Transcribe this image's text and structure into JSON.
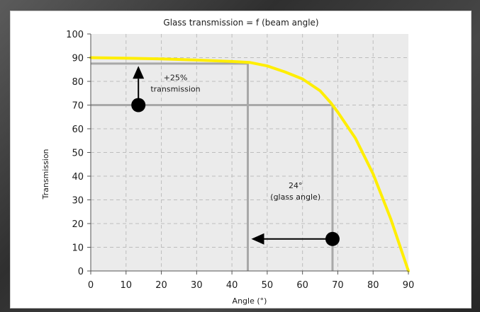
{
  "chart_data": {
    "type": "line",
    "title": "Glass transmission = f (beam angle)",
    "xlabel": "Angle (°)",
    "ylabel": "Transmission",
    "xlim": [
      0,
      90
    ],
    "ylim": [
      0,
      100
    ],
    "xticks": [
      "0",
      "10",
      "20",
      "30",
      "40",
      "50",
      "60",
      "70",
      "80",
      "90"
    ],
    "yticks": [
      "0",
      "10",
      "20",
      "30",
      "40",
      "50",
      "60",
      "70",
      "80",
      "90",
      "100"
    ],
    "grid": true,
    "series": [
      {
        "color": "#ffee00",
        "x": [
          0,
          10,
          20,
          30,
          40,
          45,
          50,
          55,
          60,
          65,
          68,
          70,
          75,
          80,
          85,
          90
        ],
        "y": [
          90,
          89.8,
          89.5,
          89,
          88.4,
          88,
          86.5,
          84,
          81,
          76,
          71,
          67,
          56,
          41,
          22,
          0
        ]
      }
    ],
    "reference_lines": [
      {
        "orientation": "horizontal",
        "y": 87.5,
        "x_to": 44.5
      },
      {
        "orientation": "vertical",
        "x": 44.5,
        "y_from": 0,
        "y_to": 87.5
      },
      {
        "orientation": "horizontal",
        "y": 70,
        "x_to": 68.5
      },
      {
        "orientation": "vertical",
        "x": 68.5,
        "y_from": 0,
        "y_to": 70
      }
    ],
    "arrows": [
      {
        "from": [
          13.5,
          70
        ],
        "to": [
          13.5,
          86.5
        ]
      },
      {
        "from": [
          68.5,
          13.5
        ],
        "to": [
          45.5,
          13.5
        ]
      }
    ],
    "annotations": [
      {
        "x": 24,
        "y": 80.5,
        "lines": [
          "+25%",
          "transmission"
        ]
      },
      {
        "x": 58,
        "y": 35,
        "lines": [
          "24°",
          "(glass angle)"
        ]
      }
    ]
  }
}
